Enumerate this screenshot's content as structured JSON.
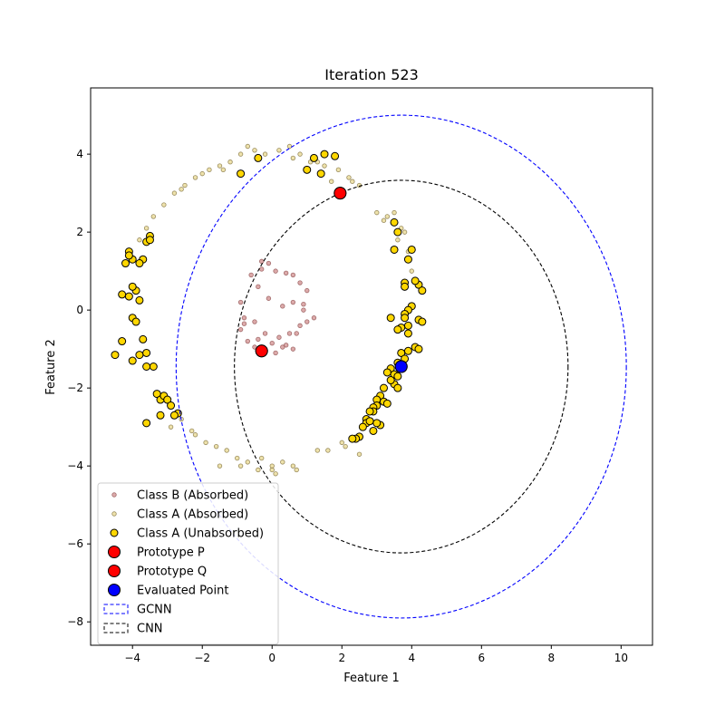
{
  "chart_data": {
    "type": "scatter",
    "title": "Iteration 523",
    "xlabel": "Feature 1",
    "ylabel": "Feature 2",
    "xlim": [
      -5.2,
      10.9
    ],
    "ylim": [
      -8.6,
      5.7
    ],
    "x_ticks": [
      -4,
      -2,
      0,
      2,
      4,
      6,
      8,
      10
    ],
    "y_ticks": [
      -8,
      -6,
      -4,
      -2,
      0,
      2,
      4
    ],
    "grid": false,
    "legend_position": "lower-left",
    "series": [
      {
        "name": "Class B (Absorbed)",
        "marker": "small-circle",
        "color": "#d08d8d",
        "edge": "#8a4a4a",
        "x": [
          -0.3,
          -0.1,
          0.1,
          0.4,
          0.6,
          0.8,
          1.0,
          0.9,
          1.2,
          0.8,
          0.5,
          0.2,
          -0.2,
          -0.5,
          -0.8,
          -0.9,
          -0.7,
          -0.5,
          -0.2,
          0.1,
          0.4,
          0.7,
          1.0,
          0.9,
          0.6,
          0.3,
          -0.1,
          -0.4,
          -0.6,
          -0.9,
          -0.8,
          -0.4,
          0.0,
          0.3,
          0.6,
          -0.3
        ],
        "y": [
          1.25,
          1.2,
          1.0,
          0.95,
          0.9,
          0.7,
          0.5,
          0.15,
          -0.2,
          -0.4,
          -0.6,
          -0.7,
          -0.6,
          -0.3,
          -0.2,
          -0.5,
          -0.8,
          -0.95,
          -1.0,
          -1.1,
          -0.9,
          -0.6,
          -0.3,
          0.0,
          0.2,
          0.1,
          0.3,
          0.6,
          0.9,
          0.2,
          -0.35,
          -0.75,
          -0.85,
          -0.95,
          -1.0,
          1.05
        ]
      },
      {
        "name": "Class A (Absorbed)",
        "marker": "small-circle",
        "color": "#e8d890",
        "edge": "#7a6a35",
        "x": [
          -2.5,
          -2.2,
          -1.8,
          -1.5,
          -1.2,
          -0.9,
          -0.5,
          -0.2,
          0.2,
          0.5,
          0.8,
          1.1,
          1.5,
          1.9,
          2.2,
          2.5,
          -3.1,
          -2.8,
          -3.4,
          -3.6,
          -3.8,
          -2.6,
          -2.0,
          -1.4,
          -0.7,
          0.6,
          1.3,
          1.7,
          2.3,
          3.2,
          3.5,
          3.8,
          3.9,
          3.6,
          3.3,
          3.0,
          4.0,
          3.7,
          -2.6,
          -2.3,
          -1.9,
          -1.6,
          -1.3,
          -1.0,
          -0.7,
          -0.3,
          0.0,
          0.3,
          0.7,
          1.3,
          1.6,
          2.0,
          2.1,
          -2.2,
          -1.5,
          -0.9,
          -0.4,
          0.1,
          0.6,
          -2.9,
          2.5,
          0.0
        ],
        "y": [
          3.2,
          3.4,
          3.6,
          3.7,
          3.8,
          4.0,
          4.1,
          4.0,
          4.1,
          4.2,
          4.0,
          3.8,
          3.7,
          3.6,
          3.4,
          3.2,
          2.7,
          3.0,
          2.4,
          2.1,
          1.8,
          3.1,
          3.5,
          3.6,
          4.2,
          3.9,
          3.8,
          3.3,
          3.3,
          2.3,
          2.5,
          2.0,
          1.5,
          1.8,
          2.4,
          2.5,
          1.0,
          2.1,
          -2.8,
          -3.1,
          -3.4,
          -3.5,
          -3.6,
          -3.8,
          -3.9,
          -3.8,
          -4.0,
          -3.9,
          -4.1,
          -3.6,
          -3.6,
          -3.4,
          -3.5,
          -3.2,
          -4.0,
          -4.0,
          -4.1,
          -4.2,
          -4.0,
          -3.0,
          -3.7,
          -4.1
        ]
      },
      {
        "name": "Class A (Unabsorbed)",
        "marker": "circle",
        "color": "#ffd700",
        "edge": "#000000",
        "x": [
          -0.9,
          -0.4,
          1.0,
          1.2,
          1.5,
          1.8,
          1.4,
          -3.6,
          -3.5,
          -3.5,
          -3.7,
          -3.8,
          -4.0,
          -4.1,
          -4.1,
          -4.2,
          -4.3,
          -3.9,
          -4.0,
          -4.1,
          -4.3,
          -3.8,
          -4.0,
          -3.9,
          -3.7,
          -3.8,
          -3.6,
          -4.0,
          -4.5,
          -3.4,
          -3.3,
          -3.2,
          -3.1,
          -3.0,
          -2.9,
          -2.7,
          -2.8,
          -3.2,
          -3.6,
          -3.6,
          3.5,
          3.6,
          3.5,
          4.0,
          3.9,
          3.8,
          3.8,
          4.2,
          4.3,
          4.1,
          4.0,
          3.9,
          3.8,
          3.8,
          4.2,
          4.3,
          3.9,
          3.7,
          3.6,
          3.4,
          3.9,
          4.1,
          4.2,
          3.9,
          3.7,
          3.8,
          3.6,
          3.4,
          3.5,
          3.6,
          3.5,
          3.4,
          3.6,
          3.3,
          3.2,
          3.1,
          3.0,
          3.0,
          2.9,
          2.9,
          2.8,
          2.7,
          2.7,
          2.6,
          2.5,
          2.4,
          2.3,
          3.1,
          2.9,
          2.8,
          3.0,
          3.2,
          3.3
        ],
        "y": [
          3.5,
          3.9,
          3.6,
          3.9,
          4.0,
          3.95,
          3.5,
          1.75,
          1.9,
          1.8,
          1.3,
          1.2,
          1.3,
          1.5,
          1.4,
          1.2,
          0.4,
          0.5,
          0.6,
          0.35,
          -0.8,
          0.25,
          -0.2,
          -0.3,
          -0.75,
          -1.15,
          -1.1,
          -1.3,
          -1.15,
          -1.45,
          -2.15,
          -2.3,
          -2.2,
          -2.3,
          -2.45,
          -2.65,
          -2.7,
          -2.7,
          -2.9,
          -1.45,
          2.25,
          2.0,
          1.55,
          1.55,
          1.3,
          0.7,
          0.6,
          0.65,
          0.5,
          0.75,
          0.1,
          0.0,
          -0.1,
          -0.2,
          -0.25,
          -0.3,
          -0.4,
          -0.45,
          -0.5,
          -0.2,
          -0.6,
          -0.95,
          -1.0,
          -1.05,
          -1.1,
          -1.25,
          -1.35,
          -1.5,
          -1.65,
          -1.7,
          -1.9,
          -1.8,
          -2.0,
          -1.6,
          -2.0,
          -2.2,
          -2.3,
          -2.45,
          -2.5,
          -2.6,
          -2.6,
          -2.8,
          -2.9,
          -3.0,
          -3.25,
          -3.3,
          -3.3,
          -2.95,
          -3.1,
          -2.85,
          -2.9,
          -2.35,
          -2.4
        ]
      },
      {
        "name": "Prototype P",
        "marker": "large-circle",
        "color": "#ff0000",
        "edge": "#000000",
        "x": [
          1.95
        ],
        "y": [
          3.0
        ]
      },
      {
        "name": "Prototype Q",
        "marker": "large-circle",
        "color": "#ff0000",
        "edge": "#000000",
        "x": [
          -0.3
        ],
        "y": [
          -1.05
        ]
      },
      {
        "name": "Evaluated Point",
        "marker": "large-circle",
        "color": "#0000ff",
        "edge": "#000000",
        "x": [
          3.7
        ],
        "y": [
          -1.45
        ]
      }
    ],
    "circles": [
      {
        "name": "GCNN",
        "center": [
          3.7,
          -1.45
        ],
        "radius": 6.45,
        "color": "#0000ff",
        "style": "dashed"
      },
      {
        "name": "CNN",
        "center": [
          3.7,
          -1.45
        ],
        "radius": 4.78,
        "color": "#000000",
        "style": "dashed"
      }
    ]
  }
}
